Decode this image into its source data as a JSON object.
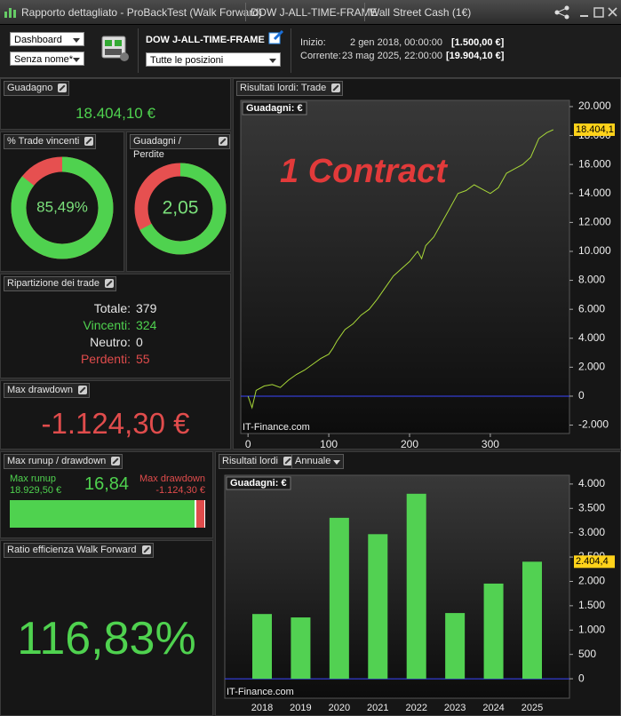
{
  "window": {
    "title": "Rapporto dettagliato - ProBackTest (Walk Forward)",
    "tabs": [
      "DOW J-ALL-TIME-FRAME",
      "Wall Street Cash (1€)"
    ]
  },
  "toolbar": {
    "view": "Dashboard",
    "layout": "Senza nome*",
    "system": "DOW J-ALL-TIME-FRAME",
    "positions": "Tutte le posizioni",
    "start_label": "Inizio:",
    "start_date": "2 gen 2018, 00:00:00",
    "start_capital": "[1.500,00 €]",
    "current_label": "Corrente:",
    "current_date": "23 mag 2025, 22:00:00",
    "current_capital": "[19.904,10 €]"
  },
  "panels": {
    "gain": {
      "title": "Guadagno",
      "value": "18.404,10 €"
    },
    "win_rate": {
      "title": "% Trade vincenti",
      "value": 85.49,
      "label": "85,49%"
    },
    "profit_factor": {
      "title": "Guadagni / Perdite",
      "value": 2.05,
      "label": "2,05"
    },
    "breakdown": {
      "title": "Ripartizione dei trade",
      "rows": [
        [
          "Totale:",
          379
        ],
        [
          "Vincenti:",
          324
        ],
        [
          "Neutro:",
          0
        ],
        [
          "Perdenti:",
          55
        ]
      ]
    },
    "max_drawdown": {
      "title": "Max drawdown",
      "value": "-1.124,30 €"
    },
    "runup": {
      "title": "Max runup / drawdown",
      "runup_label": "Max runup",
      "runup": {
        "value": 18929.5,
        "label": "18.929,50 €"
      },
      "ratio": "16,84",
      "drawdown_label": "Max drawdown",
      "drawdown": {
        "value": -1124.3,
        "label": "-1.124,30 €"
      }
    },
    "wf_ratio": {
      "title": "Ratio efficienza Walk Forward",
      "value": "116,83%"
    },
    "trade_chart": {
      "title": "Risultati lordi: Trade"
    },
    "yearly_chart": {
      "title": "Risultati lordi",
      "period": "Annuale"
    }
  },
  "chart_data": [
    {
      "type": "line",
      "label": "Guadagni: €",
      "annotation": "1 Contract",
      "watermark": "IT-Finance.com",
      "color": "#a8d838",
      "zero_color": "#3a46ff",
      "x": [
        0,
        5,
        10,
        20,
        30,
        40,
        50,
        60,
        70,
        80,
        90,
        100,
        105,
        110,
        120,
        130,
        140,
        150,
        160,
        170,
        180,
        190,
        200,
        210,
        215,
        220,
        230,
        240,
        250,
        260,
        270,
        280,
        290,
        300,
        310,
        320,
        330,
        340,
        350,
        360,
        370,
        378
      ],
      "values": [
        0,
        -800,
        400,
        700,
        800,
        600,
        1100,
        1500,
        1800,
        2200,
        2600,
        2900,
        3300,
        3800,
        4600,
        5000,
        5600,
        6000,
        6700,
        7500,
        8300,
        8800,
        9300,
        10000,
        9500,
        10400,
        11000,
        12000,
        13000,
        14000,
        14200,
        14600,
        14300,
        14000,
        14400,
        15400,
        15700,
        16000,
        16500,
        17800,
        18200,
        18404.1
      ],
      "end_label": "18.404,1",
      "xlim": [
        -9,
        398
      ],
      "xticks": [
        0,
        100,
        200,
        300
      ],
      "ylim": [
        -2580,
        20430
      ],
      "yticks": [
        {
          "value": -2000,
          "label": "-2.000"
        },
        0,
        {
          "value": 2000,
          "label": "2.000"
        },
        {
          "value": 4000,
          "label": "4.000"
        },
        {
          "value": 6000,
          "label": "6.000"
        },
        {
          "value": 8000,
          "label": "8.000"
        },
        {
          "value": 10000,
          "label": "10.000"
        },
        {
          "value": 12000,
          "label": "12.000"
        },
        {
          "value": 14000,
          "label": "14.000"
        },
        {
          "value": 16000,
          "label": "16.000"
        },
        {
          "value": 18000,
          "label": "18.000"
        },
        {
          "value": 20000,
          "label": "20.000"
        }
      ]
    },
    {
      "type": "bar",
      "label": "Guadagni: €",
      "watermark": "IT-Finance.com",
      "color": "#52d152",
      "zero_color": "#3a46ff",
      "categories": [
        "2018",
        "2019",
        "2020",
        "2021",
        "2022",
        "2023",
        "2024",
        "2025"
      ],
      "values": [
        1330,
        1260,
        3306,
        2970,
        3800,
        1350,
        1955,
        2404.4
      ],
      "end_label": "2.404,4",
      "ylim": [
        -400,
        4180
      ],
      "yticks": [
        0,
        500,
        {
          "value": 1000,
          "label": "1.000"
        },
        {
          "value": 1500,
          "label": "1.500"
        },
        {
          "value": 2000,
          "label": "2.000"
        },
        {
          "value": 2500,
          "label": "2.500"
        },
        {
          "value": 3000,
          "label": "3.000"
        },
        {
          "value": 3500,
          "label": "3.500"
        },
        {
          "value": 4000,
          "label": "4.000"
        }
      ]
    }
  ]
}
